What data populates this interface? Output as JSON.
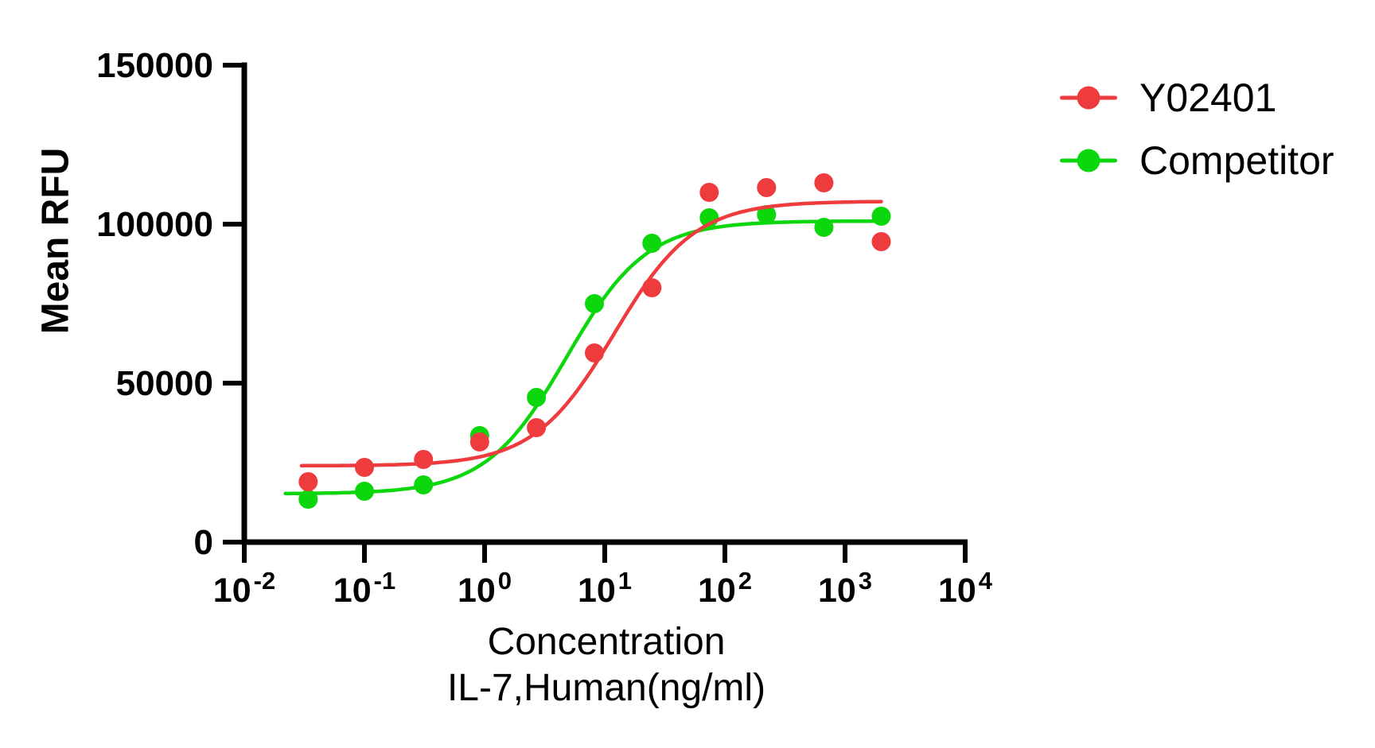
{
  "figure": {
    "background": "#ffffff",
    "axis_color": "#000000"
  },
  "chart_data": {
    "type": "scatter",
    "title": "",
    "ylabel": "Mean RFU",
    "xlabel_lines": [
      "Concentration",
      "IL-7,Human(ng/ml)"
    ],
    "x_scale": "log10",
    "xlim_exponents": [
      -2,
      4
    ],
    "x_tick_exponents": [
      -2,
      -1,
      0,
      1,
      2,
      3,
      4
    ],
    "y_ticks": [
      0,
      50000,
      100000,
      150000
    ],
    "y_tick_labels": [
      "0",
      "50000",
      "100000",
      "150000"
    ],
    "ylim": [
      0,
      150000
    ],
    "grid": false,
    "legend_position": "top-right",
    "x_units": "ng/ml",
    "series": [
      {
        "name": "Y02401",
        "color": "#ee3b3e",
        "marker": "circle",
        "x": [
          0.034,
          0.1,
          0.31,
          0.91,
          2.7,
          8.2,
          24.7,
          74,
          222,
          667,
          2000
        ],
        "y": [
          19000,
          23500,
          26000,
          31500,
          36000,
          59500,
          80000,
          110000,
          111500,
          113000,
          94500
        ],
        "fit_4pl": {
          "bottom": 24000,
          "top": 107200,
          "ec50": 12,
          "hill": 1.3,
          "x_start": 0.03,
          "x_end": 2000
        }
      },
      {
        "name": "Competitor",
        "color": "#0cd60c",
        "marker": "circle",
        "x": [
          0.034,
          0.1,
          0.31,
          0.91,
          2.7,
          8.2,
          24.7,
          74,
          222,
          667,
          2000
        ],
        "y": [
          13500,
          16000,
          18000,
          33500,
          45500,
          75000,
          94000,
          102000,
          103000,
          99000,
          102500
        ],
        "fit_4pl": {
          "bottom": 15200,
          "top": 101000,
          "ec50": 4.8,
          "hill": 1.3,
          "x_start": 0.022,
          "x_end": 2000
        }
      }
    ]
  },
  "legend": {
    "items": [
      {
        "label": "Y02401",
        "color": "#ee3b3e"
      },
      {
        "label": "Competitor",
        "color": "#0cd60c"
      }
    ]
  }
}
